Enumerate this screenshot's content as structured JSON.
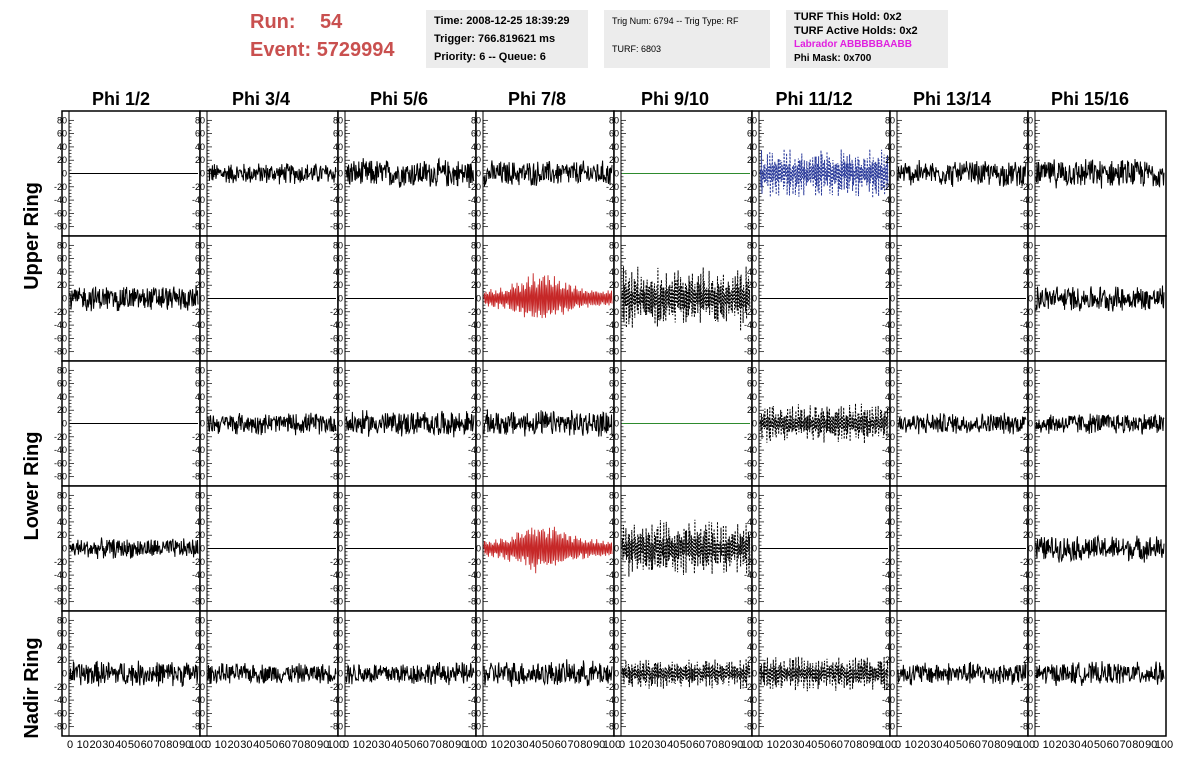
{
  "run": {
    "run_label": "Run:",
    "run_value": "54",
    "event_label": "Event:",
    "event_value": "5729994"
  },
  "box_time": {
    "time": "Time: 2008-12-25 18:39:29",
    "trigger": "Trigger: 766.819621 ms",
    "priority": "Priority: 6 -- Queue: 6"
  },
  "box_trig": {
    "trig": "Trig Num: 6794 -- Trig Type: RF",
    "turf": "TURF: 6803"
  },
  "box_turf": {
    "this_hold": "TURF This Hold: 0x2",
    "active_holds": "TURF Active Holds: 0x2",
    "labrador": "Labrador ABBBBBAABB",
    "phi_mask": "Phi Mask: 0x700"
  },
  "phi_labels": [
    "Phi 1/2",
    "Phi 3/4",
    "Phi 5/6",
    "Phi 7/8",
    "Phi 9/10",
    "Phi 11/12",
    "Phi 13/14",
    "Phi 15/16"
  ],
  "ring_labels": {
    "upper": "Upper Ring",
    "lower": "Lower Ring",
    "nadir": "Nadir Ring"
  },
  "y_ticks": [
    80,
    60,
    40,
    20,
    0,
    -20,
    -40,
    -60,
    -80
  ],
  "x_ticks": [
    "0",
    "10",
    "20",
    "30",
    "40",
    "50",
    "60",
    "70",
    "80",
    "90",
    "100"
  ],
  "colors": {
    "red": "#c62828",
    "blue": "#2a3a9a",
    "green": "#2e8b2e",
    "black": "#000000",
    "title": "#c9504f",
    "magenta": "#e020e0"
  },
  "chart_data": {
    "type": "line",
    "ylim": [
      -85,
      85
    ],
    "xlim": [
      0,
      100
    ],
    "panel_styles": [
      [
        "flat",
        "noise",
        "noise",
        "noise",
        "flat-green",
        "blue-dashed",
        "noise",
        "noise"
      ],
      [
        "noise",
        "flat",
        "flat",
        "red",
        "black-dashed",
        "flat",
        "flat",
        "noise"
      ],
      [
        "flat",
        "noise",
        "noise",
        "noise",
        "flat-green",
        "black-dashed",
        "noise",
        "noise"
      ],
      [
        "noise",
        "flat",
        "flat",
        "red",
        "black-dashed",
        "flat",
        "flat",
        "noise"
      ],
      [
        "noise",
        "noise",
        "noise",
        "noise",
        "black-dashed",
        "black-dashed",
        "noise",
        "noise"
      ]
    ],
    "amplitude": [
      [
        0,
        15,
        20,
        18,
        0,
        35,
        18,
        20
      ],
      [
        18,
        0,
        0,
        30,
        45,
        0,
        0,
        18
      ],
      [
        0,
        15,
        18,
        18,
        0,
        28,
        15,
        15
      ],
      [
        14,
        0,
        0,
        30,
        40,
        0,
        0,
        18
      ],
      [
        18,
        14,
        16,
        18,
        22,
        25,
        16,
        16
      ]
    ]
  }
}
